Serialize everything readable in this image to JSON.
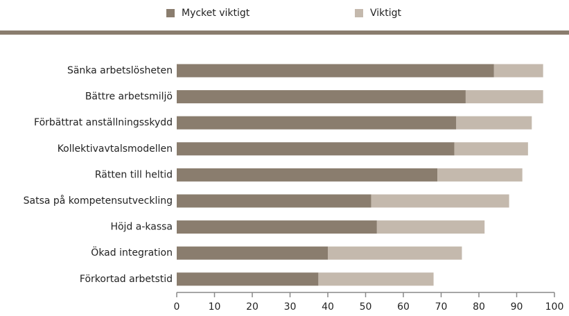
{
  "chart_data": {
    "type": "stacked_barh",
    "categories": [
      "Sänka arbetslösheten",
      "Bättre arbetsmiljö",
      "Förbättrat anställningsskydd",
      "Kollektivavtalsmodellen",
      "Rätten till heltid",
      "Satsa på kompetensutveckling",
      "Höjd a-kassa",
      "Ökad integration",
      "Förkortad arbetstid"
    ],
    "series": [
      {
        "name": "Mycket viktigt",
        "color": "#8a7d6e",
        "values": [
          84,
          76.5,
          74,
          73.5,
          69,
          51.5,
          53,
          40,
          37.5
        ]
      },
      {
        "name": "Viktigt",
        "color": "#c4b9ad",
        "values": [
          13,
          20.5,
          20,
          19.5,
          22.5,
          36.5,
          28.5,
          35.5,
          30.5
        ]
      }
    ],
    "xlim": [
      0,
      100
    ],
    "xticks": [
      0,
      10,
      20,
      30,
      40,
      50,
      60,
      70,
      80,
      90,
      100
    ],
    "legend": "top"
  }
}
